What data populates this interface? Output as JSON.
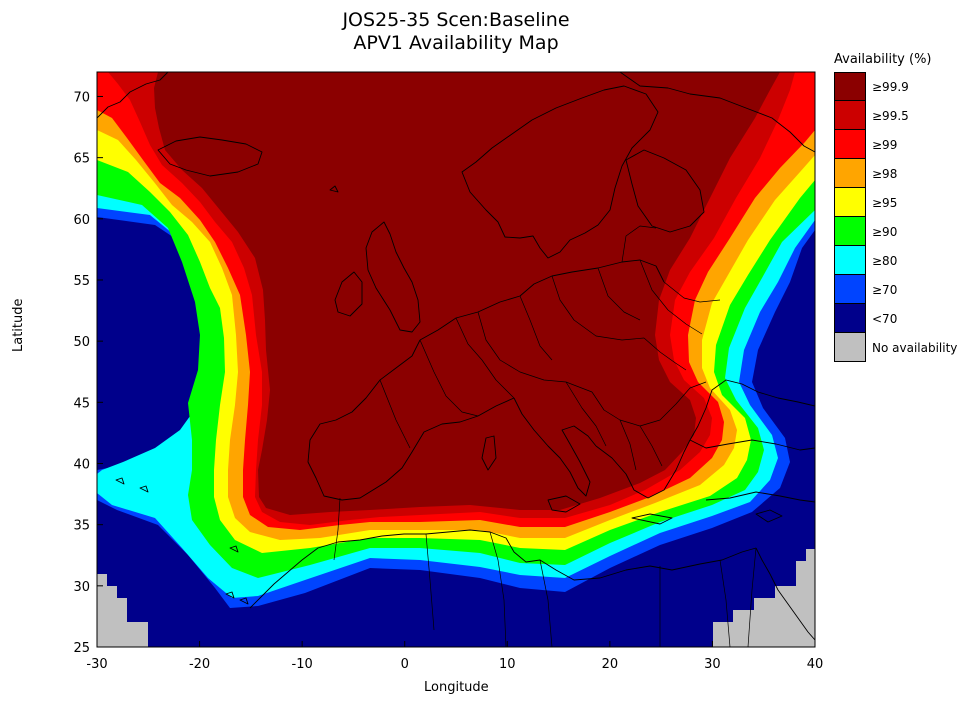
{
  "title_line1": "JOS25-35 Scen:Baseline",
  "title_line2": "APV1 Availability Map",
  "x_axis": {
    "label": "Longitude",
    "range": [
      -30,
      40
    ],
    "ticks": [
      "-30",
      "-20",
      "-10",
      "0",
      "10",
      "20",
      "30",
      "40"
    ]
  },
  "y_axis": {
    "label": "Latitude",
    "range": [
      25,
      72
    ],
    "ticks": [
      "25",
      "30",
      "35",
      "40",
      "45",
      "50",
      "55",
      "60",
      "65",
      "70"
    ]
  },
  "legend": {
    "title": "Availability (%)",
    "placement": "right",
    "items": [
      {
        "label": "≥99.9",
        "color": "#8b0000"
      },
      {
        "label": "≥99.5",
        "color": "#cc0000"
      },
      {
        "label": "≥99",
        "color": "#ff0000"
      },
      {
        "label": "≥98",
        "color": "#ffa500"
      },
      {
        "label": "≥95",
        "color": "#ffff00"
      },
      {
        "label": "≥90",
        "color": "#00ff00"
      },
      {
        "label": "≥80",
        "color": "#00ffff"
      },
      {
        "label": "≥70",
        "color": "#0044ff"
      },
      {
        "label": "<70",
        "color": "#00008b"
      },
      {
        "label": "No availability",
        "color": "#c0c0c0"
      }
    ]
  },
  "map": {
    "region": "Europe / North Atlantic",
    "icons": [
      "coastline-outline",
      "country-borders"
    ]
  }
}
